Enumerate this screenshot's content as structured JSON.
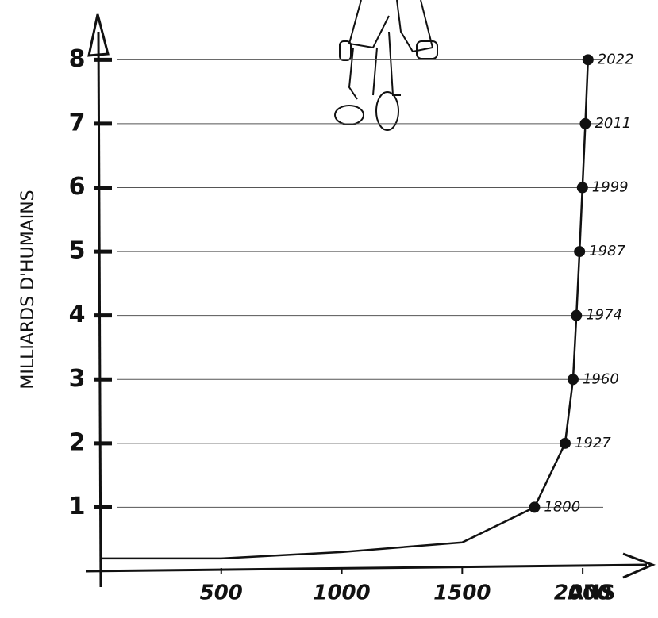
{
  "chart_data": {
    "type": "line",
    "y_label": "MILLIARDS D'HUMAINS",
    "x_label": "ANS",
    "x": [
      0,
      500,
      1000,
      1500,
      1800,
      1927,
      1960,
      1974,
      1987,
      1999,
      2011,
      2022
    ],
    "values": [
      0.2,
      0.2,
      0.3,
      0.45,
      1,
      2,
      3,
      4,
      5,
      6,
      7,
      8
    ],
    "color": "#111111",
    "xlim": [
      0,
      2250
    ],
    "xticks": [
      500,
      1000,
      1500,
      2000
    ],
    "ylim": [
      0,
      8.6
    ],
    "yticks": [
      1,
      2,
      3,
      4,
      5,
      6,
      7,
      8
    ],
    "grid": true
  }
}
